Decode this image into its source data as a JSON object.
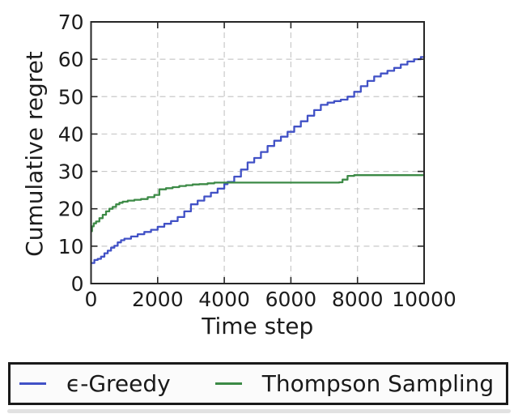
{
  "figure": {
    "background": "#ffffff",
    "text_color": "#1c1c1c",
    "bottom_divider_color": "#e2e2e2"
  },
  "chart_data": {
    "type": "line",
    "title": "",
    "xlabel": "Time step",
    "ylabel": "Cumulative regret",
    "xlim": [
      0,
      10000
    ],
    "ylim": [
      0,
      70
    ],
    "xticks": [
      0,
      2000,
      4000,
      6000,
      8000,
      10000
    ],
    "yticks": [
      0,
      10,
      20,
      30,
      40,
      50,
      60,
      70
    ],
    "grid": true,
    "grid_style": "dashed",
    "grid_color": "#c9c9c9",
    "spine_color": "#262626",
    "legend_position": "below-figure",
    "series": [
      {
        "name": "ϵ-Greedy",
        "color": "#4151c6",
        "interpolation": "step-after",
        "points": [
          [
            0,
            5.5
          ],
          [
            100,
            6.3
          ],
          [
            200,
            6.6
          ],
          [
            300,
            7.2
          ],
          [
            400,
            8.1
          ],
          [
            500,
            8.8
          ],
          [
            600,
            9.6
          ],
          [
            700,
            10.1
          ],
          [
            800,
            11.0
          ],
          [
            900,
            11.6
          ],
          [
            1000,
            12.0
          ],
          [
            1200,
            12.6
          ],
          [
            1400,
            13.2
          ],
          [
            1600,
            13.8
          ],
          [
            1800,
            14.4
          ],
          [
            2000,
            15.2
          ],
          [
            2200,
            16.0
          ],
          [
            2400,
            16.7
          ],
          [
            2600,
            17.8
          ],
          [
            2800,
            19.3
          ],
          [
            3000,
            21.2
          ],
          [
            3200,
            22.2
          ],
          [
            3400,
            23.3
          ],
          [
            3600,
            24.3
          ],
          [
            3800,
            25.4
          ],
          [
            4000,
            26.6
          ],
          [
            4100,
            27.2
          ],
          [
            4300,
            28.6
          ],
          [
            4500,
            30.5
          ],
          [
            4700,
            32.4
          ],
          [
            4900,
            33.6
          ],
          [
            5100,
            35.2
          ],
          [
            5300,
            36.8
          ],
          [
            5500,
            38.2
          ],
          [
            5700,
            39.3
          ],
          [
            5900,
            40.6
          ],
          [
            6100,
            42.0
          ],
          [
            6300,
            43.4
          ],
          [
            6500,
            44.9
          ],
          [
            6700,
            46.4
          ],
          [
            6900,
            47.8
          ],
          [
            7100,
            48.4
          ],
          [
            7300,
            48.8
          ],
          [
            7500,
            49.2
          ],
          [
            7700,
            50.0
          ],
          [
            7900,
            51.3
          ],
          [
            8100,
            52.8
          ],
          [
            8300,
            54.2
          ],
          [
            8500,
            55.4
          ],
          [
            8700,
            56.2
          ],
          [
            8900,
            56.9
          ],
          [
            9100,
            57.7
          ],
          [
            9300,
            58.6
          ],
          [
            9500,
            59.4
          ],
          [
            9700,
            60.0
          ],
          [
            9900,
            60.6
          ],
          [
            10000,
            60.8
          ]
        ]
      },
      {
        "name": "Thompson Sampling",
        "color": "#3c8a46",
        "interpolation": "step-after",
        "points": [
          [
            0,
            14.0
          ],
          [
            30,
            15.3
          ],
          [
            80,
            16.1
          ],
          [
            150,
            16.6
          ],
          [
            250,
            17.5
          ],
          [
            350,
            18.4
          ],
          [
            450,
            19.3
          ],
          [
            550,
            20.0
          ],
          [
            650,
            20.5
          ],
          [
            750,
            21.2
          ],
          [
            850,
            21.6
          ],
          [
            950,
            21.9
          ],
          [
            1100,
            22.2
          ],
          [
            1300,
            22.4
          ],
          [
            1500,
            22.6
          ],
          [
            1700,
            23.1
          ],
          [
            1900,
            23.7
          ],
          [
            2050,
            25.2
          ],
          [
            2250,
            25.5
          ],
          [
            2450,
            25.8
          ],
          [
            2650,
            26.1
          ],
          [
            2850,
            26.3
          ],
          [
            3050,
            26.5
          ],
          [
            3250,
            26.6
          ],
          [
            3500,
            26.8
          ],
          [
            3700,
            27.0
          ],
          [
            4200,
            27.0
          ],
          [
            5000,
            27.0
          ],
          [
            6000,
            27.0
          ],
          [
            7000,
            27.0
          ],
          [
            7450,
            27.1
          ],
          [
            7550,
            27.8
          ],
          [
            7700,
            28.8
          ],
          [
            7900,
            29.0
          ],
          [
            8500,
            29.0
          ],
          [
            9200,
            29.0
          ],
          [
            10000,
            29.0
          ]
        ]
      }
    ]
  },
  "legend": {
    "items": [
      {
        "label": "ϵ-Greedy",
        "color": "#4151c6"
      },
      {
        "label": "Thompson Sampling",
        "color": "#3c8a46"
      }
    ]
  }
}
